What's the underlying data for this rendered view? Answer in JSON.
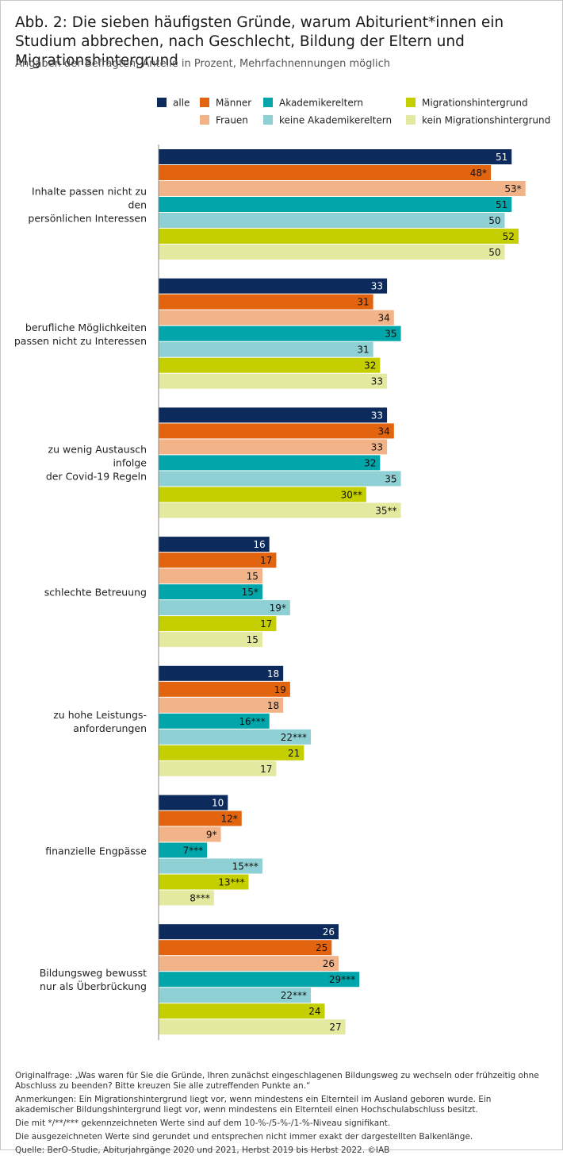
{
  "chart_data": {
    "type": "hbar",
    "title": "Abb. 2: Die sieben häufigsten Gründe, warum Abiturient*innen ein Studium abbrechen, nach Geschlecht, Bildung der Eltern und Migrationshintergrund",
    "subtitle": "Angaben der Befragten, Anteile in Prozent, Mehrfachnennungen möglich",
    "categories": [
      "Inhalte passen nicht zu den\npersönlichen Interessen",
      "berufliche Möglichkeiten\npassen nicht zu Interessen",
      "zu wenig Austausch infolge\nder Covid-19 Regeln",
      "schlechte Betreuung",
      "zu hohe Leistungs-\nanforderungen",
      "finanzielle Engpässe",
      "Bildungsweg bewusst\nnur als Überbrückung"
    ],
    "series": [
      {
        "name": "alle",
        "color": "#0c2a5b",
        "values": [
          51,
          33,
          33,
          16,
          18,
          10,
          26
        ]
      },
      {
        "name": "Männer",
        "color": "#e2640f",
        "values": [
          48,
          31,
          34,
          17,
          19,
          12,
          25
        ],
        "value_labels": [
          "48*",
          "31",
          "34",
          "17",
          "19",
          "12*",
          "25"
        ]
      },
      {
        "name": "Frauen",
        "color": "#f2b388",
        "values": [
          53,
          34,
          33,
          15,
          18,
          9,
          26
        ],
        "value_labels": [
          "53*",
          "34",
          "33",
          "15",
          "18",
          "9*",
          "26"
        ]
      },
      {
        "name": "Akademikereltern",
        "color": "#00a6a9",
        "values": [
          51,
          35,
          32,
          15,
          16,
          7,
          29
        ],
        "value_labels": [
          "51",
          "35",
          "32",
          "15*",
          "16***",
          "7***",
          "29***"
        ]
      },
      {
        "name": "keine Akademikereltern",
        "color": "#8fd0d4",
        "values": [
          50,
          31,
          35,
          19,
          22,
          15,
          22
        ],
        "value_labels": [
          "50",
          "31",
          "35",
          "19*",
          "22***",
          "15***",
          "22***"
        ]
      },
      {
        "name": "Migrationshintergrund",
        "color": "#c5cf00",
        "values": [
          52,
          32,
          30,
          17,
          21,
          13,
          24
        ],
        "value_labels": [
          "52",
          "32",
          "30**",
          "17",
          "21",
          "13***",
          "24"
        ]
      },
      {
        "name": "kein Migrationshintergrund",
        "color": "#e4e9a0",
        "values": [
          50,
          33,
          35,
          15,
          17,
          8,
          27
        ],
        "value_labels": [
          "50",
          "33",
          "35**",
          "15",
          "17",
          "8***",
          "27"
        ]
      }
    ],
    "notes": [
      "Originalfrage: „Was waren für Sie die Gründe, Ihren zunächst eingeschlagenen Bildungsweg zu wechseln oder frühzeitig ohne Abschluss zu beenden? Bitte kreuzen Sie alle zutreffenden Punkte an.“",
      "Anmerkungen: Ein Migrationshintergrund liegt vor, wenn mindestens ein Elternteil im Ausland geboren wurde. Ein akademischer Bildungshintergrund liegt vor, wenn mindestens ein Elternteil einen Hochschulabschluss besitzt.",
      "Die mit */**/*** gekennzeichneten Werte sind auf dem 10-%-/5-%-/1-%-Niveau signifikant.",
      "Die ausgezeichneten Werte sind gerundet und entsprechen nicht immer exakt der dargestellten Balkenlänge.",
      "Quelle: BerO-Studie, Abiturjahrgänge 2020 und 2021, Herbst 2019 bis Herbst 2022.  ©IAB"
    ]
  }
}
